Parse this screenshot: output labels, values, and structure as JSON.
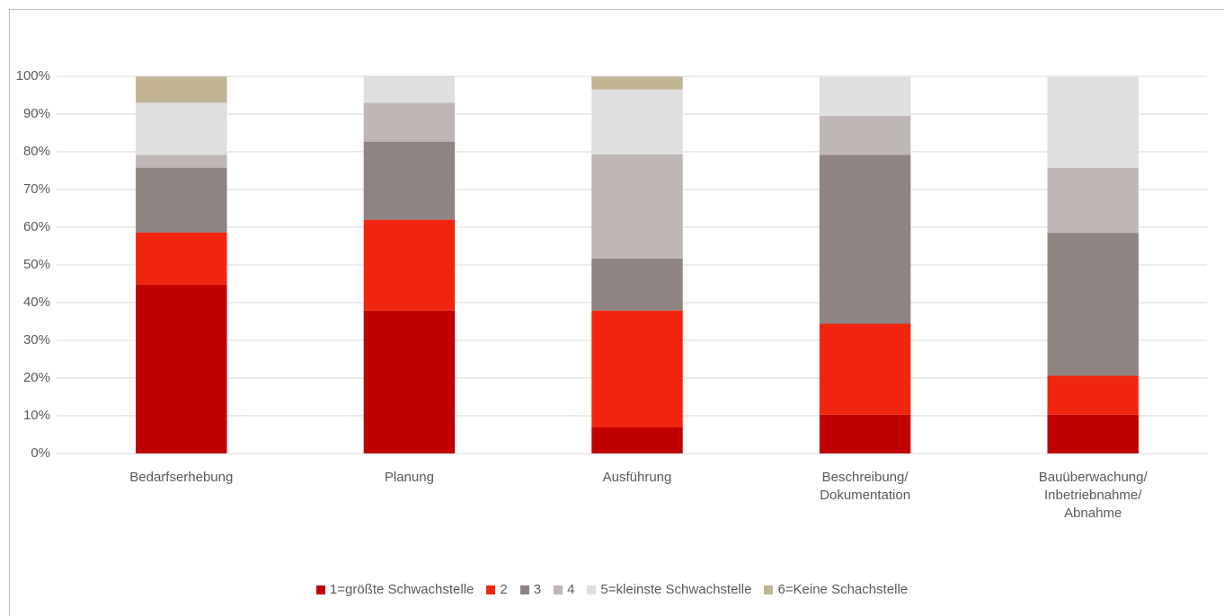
{
  "chart_data": {
    "type": "stacked_bar",
    "categories": [
      "Bedarfserhebung",
      "Planung",
      "Ausführung",
      "Beschreibung/\nDokumentation",
      "Bauüberwachung/\nInbetriebnahme/\nAbnahme"
    ],
    "series": [
      {
        "name": "1=größte Schwachstelle",
        "color": "#c00000",
        "values": [
          44.8,
          37.9,
          6.9,
          10.3,
          10.3
        ]
      },
      {
        "name": "2",
        "color": "#f2260f",
        "values": [
          13.8,
          24.1,
          31.0,
          24.1,
          10.3
        ]
      },
      {
        "name": "3",
        "color": "#8f8482",
        "values": [
          17.2,
          20.7,
          13.8,
          44.8,
          37.9
        ]
      },
      {
        "name": "4",
        "color": "#bfb6b6",
        "values": [
          3.4,
          10.3,
          27.6,
          10.3,
          17.2
        ]
      },
      {
        "name": "5=kleinste Schwachstelle",
        "color": "#e0dfdf",
        "values": [
          13.8,
          6.9,
          17.2,
          10.3,
          24.1
        ]
      },
      {
        "name": "6=Keine Schachstelle",
        "color": "#c1b594",
        "values": [
          6.9,
          0,
          3.4,
          0,
          0
        ]
      }
    ],
    "ylim": [
      0,
      100
    ],
    "yticks": [
      {
        "value": 0,
        "label": "0%"
      },
      {
        "value": 10,
        "label": "10%"
      },
      {
        "value": 20,
        "label": "20%"
      },
      {
        "value": 30,
        "label": "30%"
      },
      {
        "value": 40,
        "label": "40%"
      },
      {
        "value": 50,
        "label": "50%"
      },
      {
        "value": 60,
        "label": "60%"
      },
      {
        "value": 70,
        "label": "70%"
      },
      {
        "value": 80,
        "label": "80%"
      },
      {
        "value": 90,
        "label": "90%"
      },
      {
        "value": 100,
        "label": "100%"
      }
    ],
    "grid": true,
    "legend": "bottom"
  }
}
